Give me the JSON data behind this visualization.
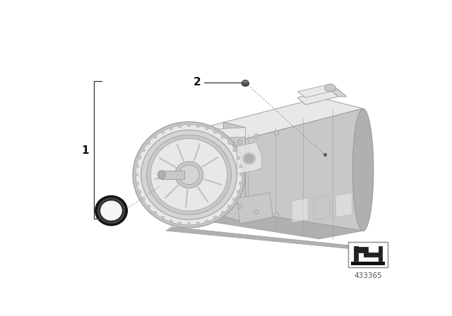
{
  "bg_color": "#ffffff",
  "label1": "1",
  "label2": "2",
  "part_number": "433365",
  "fig_width": 6.4,
  "fig_height": 4.48,
  "dpi": 100,
  "body_color": "#d4d4d4",
  "body_color2": "#c8c8c8",
  "body_highlight": "#e8e8e8",
  "body_shadow": "#b0b0b0",
  "body_dark": "#a0a0a0",
  "ring_dark": "#3a3a3a",
  "ring_mid": "#555555",
  "plug_color": "#606060",
  "line_color": "#333333",
  "dash_color": "#888888"
}
